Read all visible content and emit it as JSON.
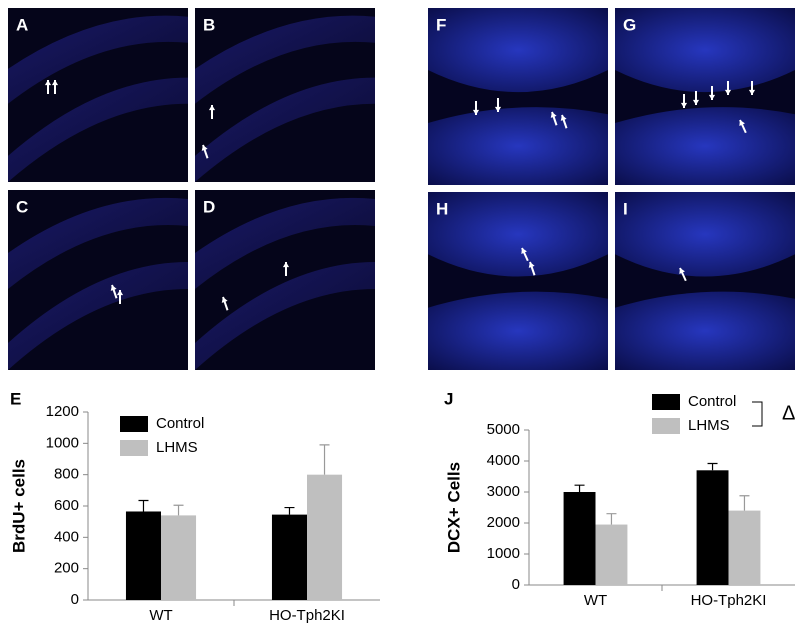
{
  "panels": [
    {
      "label": "A"
    },
    {
      "label": "B"
    },
    {
      "label": "C"
    },
    {
      "label": "D"
    },
    {
      "label": "F"
    },
    {
      "label": "G"
    },
    {
      "label": "H"
    },
    {
      "label": "I"
    }
  ],
  "chart_data": [
    {
      "type": "bar",
      "panel_label": "E",
      "ylabel": "BrdU+ cells",
      "categories": [
        "WT",
        "HO-Tph2KI"
      ],
      "series": [
        {
          "name": "Control",
          "color": "#000000",
          "values": [
            565,
            545
          ],
          "errors": [
            70,
            45
          ]
        },
        {
          "name": "LHMS",
          "color": "#bfbfbf",
          "values": [
            540,
            800
          ],
          "errors": [
            65,
            190
          ]
        }
      ],
      "ylim": [
        0,
        1200
      ],
      "yticks": [
        0,
        200,
        400,
        600,
        800,
        1000,
        1200
      ]
    },
    {
      "type": "bar",
      "panel_label": "J",
      "ylabel": "DCX+ Cells",
      "annotation": "Δ",
      "categories": [
        "WT",
        "HO-Tph2KI"
      ],
      "series": [
        {
          "name": "Control",
          "color": "#000000",
          "values": [
            3000,
            3700
          ],
          "errors": [
            220,
            220
          ]
        },
        {
          "name": "LHMS",
          "color": "#bfbfbf",
          "values": [
            1950,
            2400
          ],
          "errors": [
            350,
            480
          ]
        }
      ],
      "ylim": [
        0,
        5000
      ],
      "yticks": [
        0,
        1000,
        2000,
        3000,
        4000,
        5000
      ]
    }
  ]
}
